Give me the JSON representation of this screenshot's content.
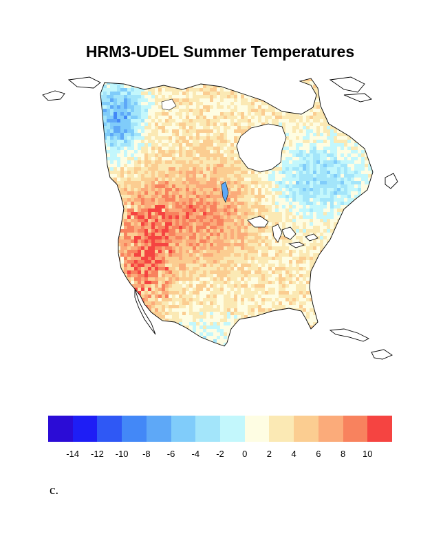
{
  "title": "HRM3-UDEL Summer Temperatures",
  "panel_label": "c.",
  "colorbar": {
    "colors": [
      "#2b0cd6",
      "#1e1ef5",
      "#2f58f5",
      "#4388f7",
      "#5ea8f7",
      "#80ccfa",
      "#a3e5fa",
      "#c3f7fc",
      "#fefde3",
      "#fbe9b4",
      "#fbcd91",
      "#fbab7a",
      "#f8825e",
      "#f54441"
    ],
    "tick_labels": [
      "-14",
      "-12",
      "-10",
      "-8",
      "-6",
      "-4",
      "-2",
      "0",
      "2",
      "4",
      "6",
      "8",
      "10"
    ]
  },
  "map": {
    "region": "North America",
    "field": "summer temperature difference",
    "palette": "blue-white-red diverging"
  }
}
